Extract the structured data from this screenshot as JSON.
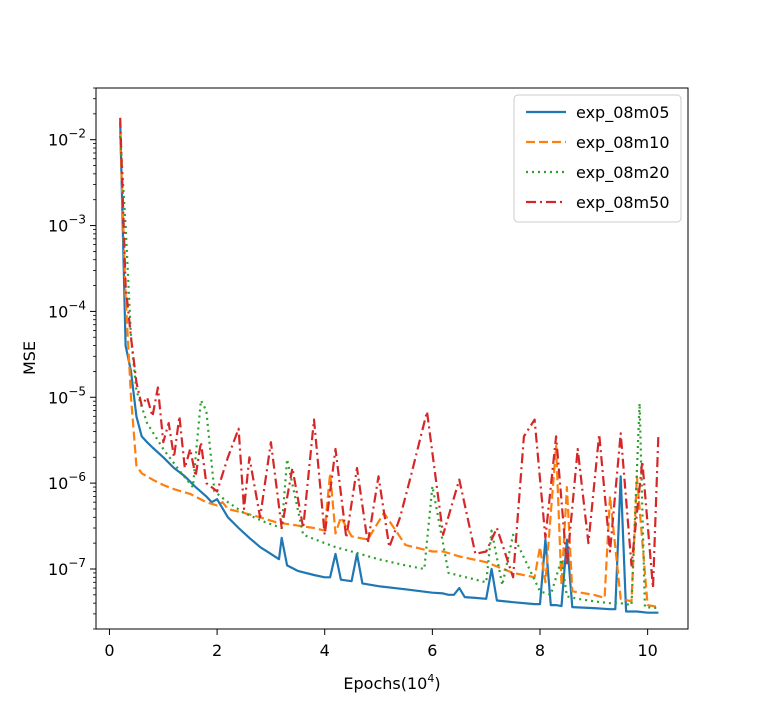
{
  "chart_data": {
    "type": "line",
    "title": "",
    "xlabel": "Epochs(10",
    "xlabel_exp": "4",
    "xlabel_end": ")",
    "ylabel": "MSE",
    "yscale": "log",
    "xlim": [
      -0.25,
      10.75
    ],
    "ylim": [
      2e-08,
      0.04
    ],
    "xticks": [
      0,
      2,
      4,
      6,
      8,
      10
    ],
    "xtick_labels": [
      "0",
      "2",
      "4",
      "6",
      "8",
      "10"
    ],
    "yticks": [
      1e-07,
      1e-06,
      1e-05,
      0.0001,
      0.001,
      0.01
    ],
    "ytick_base": "10",
    "ytick_exps": [
      "−7",
      "−6",
      "−5",
      "−4",
      "−3",
      "−2"
    ],
    "legend_position": "top-right",
    "series": [
      {
        "name": "exp_08m05",
        "color": "#1f77b4",
        "dash": "solid",
        "x": [
          0.2,
          0.3,
          0.4,
          0.5,
          0.6,
          0.7,
          0.8,
          1.0,
          1.2,
          1.4,
          1.6,
          1.8,
          1.9,
          2.0,
          2.2,
          2.4,
          2.6,
          2.8,
          3.0,
          3.15,
          3.2,
          3.3,
          3.5,
          3.8,
          4.0,
          4.1,
          4.2,
          4.3,
          4.5,
          4.6,
          4.7,
          5.0,
          5.5,
          6.0,
          6.2,
          6.3,
          6.4,
          6.5,
          6.6,
          6.8,
          7.0,
          7.1,
          7.2,
          7.5,
          7.9,
          8.0,
          8.1,
          8.2,
          8.3,
          8.4,
          8.5,
          8.6,
          9.0,
          9.3,
          9.4,
          9.5,
          9.6,
          9.8,
          10.0,
          10.2
        ],
        "y": [
          0.016,
          4e-05,
          2e-05,
          6e-06,
          3.5e-06,
          3e-06,
          2.6e-06,
          2e-06,
          1.5e-06,
          1.2e-06,
          9e-07,
          7e-07,
          6e-07,
          6.5e-07,
          4e-07,
          3e-07,
          2.3e-07,
          1.8e-07,
          1.5e-07,
          1.3e-07,
          2.3e-07,
          1.1e-07,
          9.5e-08,
          8.5e-08,
          8e-08,
          8e-08,
          1.5e-07,
          7.5e-08,
          7.2e-08,
          1.5e-07,
          6.8e-08,
          6.3e-08,
          5.8e-08,
          5.3e-08,
          5.2e-08,
          5e-08,
          5e-08,
          6e-08,
          4.7e-08,
          4.6e-08,
          4.5e-08,
          1e-07,
          4.3e-08,
          4.1e-08,
          3.9e-08,
          3.9e-08,
          2.2e-07,
          3.8e-08,
          3.8e-08,
          3.7e-08,
          2.2e-07,
          3.6e-08,
          3.5e-08,
          3.4e-08,
          3.4e-08,
          1.2e-06,
          3.2e-08,
          3.2e-08,
          3.1e-08,
          3.1e-08
        ]
      },
      {
        "name": "exp_08m10",
        "color": "#ff7f0e",
        "dash": "dashed",
        "x": [
          0.2,
          0.3,
          0.4,
          0.5,
          0.6,
          0.8,
          1.0,
          1.2,
          1.5,
          1.8,
          2.0,
          2.1,
          2.2,
          2.5,
          2.8,
          3.1,
          3.5,
          3.8,
          4.0,
          4.1,
          4.2,
          4.3,
          4.5,
          4.8,
          5.1,
          5.5,
          6.0,
          6.2,
          6.5,
          7.0,
          7.5,
          7.9,
          8.0,
          8.1,
          8.3,
          8.4,
          8.5,
          8.6,
          9.0,
          9.2,
          9.3,
          9.5,
          9.7,
          9.8,
          10.0,
          10.2
        ],
        "y": [
          0.012,
          0.00015,
          1e-05,
          1.6e-06,
          1.3e-06,
          1.1e-06,
          9.5e-07,
          8.5e-07,
          7.5e-07,
          6e-07,
          5.5e-07,
          6e-07,
          5e-07,
          4.5e-07,
          4e-07,
          3.5e-07,
          3.2e-07,
          3e-07,
          2.8e-07,
          1.3e-06,
          2.6e-07,
          4e-07,
          2.4e-07,
          2.2e-07,
          4.5e-07,
          1.9e-07,
          1.6e-07,
          1.6e-07,
          1.4e-07,
          1.2e-07,
          9e-08,
          8e-08,
          1.8e-07,
          7e-08,
          2.7e-06,
          6.5e-08,
          9e-07,
          5.5e-08,
          5e-08,
          4.6e-08,
          7e-07,
          4.5e-08,
          4.2e-08,
          1.2e-06,
          3.8e-08,
          3.6e-08
        ]
      },
      {
        "name": "exp_08m20",
        "color": "#2ca02c",
        "dash": "dotted",
        "x": [
          0.2,
          0.3,
          0.4,
          0.5,
          0.7,
          1.0,
          1.3,
          1.55,
          1.7,
          1.8,
          1.95,
          2.2,
          2.5,
          2.9,
          3.2,
          3.3,
          3.6,
          4.0,
          4.2,
          4.5,
          5.0,
          5.5,
          5.85,
          6.0,
          6.3,
          7.0,
          7.1,
          7.3,
          7.5,
          8.0,
          8.2,
          8.4,
          8.5,
          8.7,
          9.0,
          9.3,
          9.5,
          9.7,
          9.85,
          9.95,
          10.2
        ],
        "y": [
          0.011,
          0.001,
          5e-05,
          1.2e-05,
          5e-06,
          2.5e-06,
          1.4e-06,
          9e-07,
          9.2e-06,
          7e-06,
          8e-07,
          6e-07,
          4.5e-07,
          3.5e-07,
          3e-07,
          1.9e-06,
          2.5e-07,
          2e-07,
          1.8e-07,
          1.6e-07,
          1.3e-07,
          1.1e-07,
          1e-07,
          9.2e-07,
          9e-08,
          7e-08,
          2.8e-07,
          6.5e-08,
          2.5e-07,
          5.5e-08,
          5e-08,
          1.3e-07,
          4.8e-08,
          4.5e-08,
          4.2e-08,
          4e-08,
          4e-08,
          3.8e-08,
          8.5e-06,
          3.6e-08,
          3.5e-08
        ]
      },
      {
        "name": "exp_08m50",
        "color": "#d62728",
        "dash": "dashdot",
        "x": [
          0.2,
          0.3,
          0.4,
          0.5,
          0.6,
          0.7,
          0.8,
          0.9,
          1.0,
          1.1,
          1.2,
          1.3,
          1.4,
          1.5,
          1.6,
          1.7,
          1.8,
          2.0,
          2.2,
          2.4,
          2.5,
          2.6,
          2.8,
          3.0,
          3.2,
          3.4,
          3.6,
          3.8,
          4.0,
          4.2,
          4.4,
          4.6,
          4.8,
          5.0,
          5.2,
          5.4,
          5.6,
          5.9,
          6.2,
          6.5,
          6.8,
          7.0,
          7.2,
          7.5,
          7.7,
          7.9,
          8.1,
          8.3,
          8.5,
          8.7,
          8.9,
          9.1,
          9.3,
          9.5,
          9.7,
          9.9,
          10.1,
          10.2
        ],
        "y": [
          0.018,
          0.0002,
          5e-05,
          1.5e-05,
          8e-06,
          1e-05,
          6e-06,
          1.3e-05,
          3e-06,
          5e-06,
          2e-06,
          6e-06,
          1.5e-06,
          2.5e-06,
          1.2e-06,
          3e-06,
          1e-06,
          8e-07,
          2e-06,
          4.3e-06,
          5e-07,
          2e-06,
          4e-07,
          3e-06,
          3e-07,
          1.5e-06,
          3e-07,
          5.5e-06,
          2.5e-07,
          2.5e-06,
          2.3e-07,
          1.5e-06,
          2e-07,
          1.2e-06,
          1.8e-07,
          4e-07,
          1.2e-06,
          6.8e-06,
          2.5e-07,
          1.1e-06,
          1.5e-07,
          1.6e-07,
          3e-07,
          8e-08,
          3.5e-06,
          5.5e-06,
          2.3e-07,
          3.5e-06,
          1.1e-07,
          2.5e-06,
          2e-07,
          3.7e-06,
          1.6e-07,
          3.8e-06,
          1.1e-07,
          1.8e-06,
          6e-08,
          3.7e-06
        ]
      }
    ]
  }
}
